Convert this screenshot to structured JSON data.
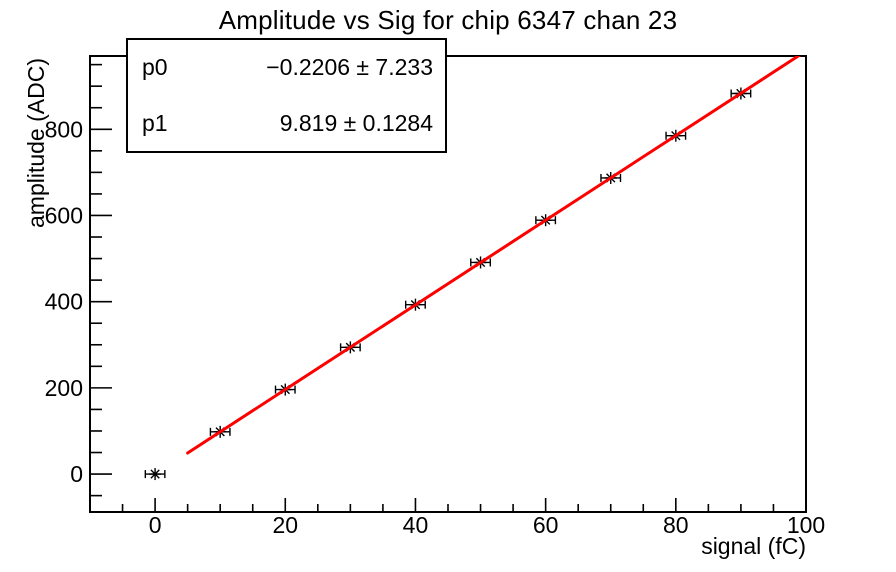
{
  "title": "Amplitude vs Sig for chip 6347 chan 23",
  "stats_box": {
    "rows": [
      {
        "name": "p0",
        "value": "−0.2206 ± 7.233"
      },
      {
        "name": "p1",
        "value": "9.819 ± 0.1284"
      }
    ]
  },
  "colors": {
    "background": "#ffffff",
    "axis": "#000000",
    "text": "#000000",
    "marker": "#000000",
    "fit_line": "#ff0000",
    "stats_border": "#000000"
  },
  "chart_data": {
    "type": "scatter",
    "title": "Amplitude vs Sig for chip 6347 chan 23",
    "xlabel": "signal (fC)",
    "ylabel": "amplitude (ADC)",
    "xlim": [
      -10,
      100
    ],
    "ylim": [
      -88,
      970
    ],
    "x_major_ticks": [
      0,
      20,
      40,
      60,
      80,
      100
    ],
    "x_minor_step": 5,
    "y_major_ticks": [
      0,
      200,
      400,
      600,
      800
    ],
    "y_minor_step": 50,
    "grid": false,
    "legend": "none",
    "series": [
      {
        "name": "data points",
        "type": "scatter",
        "marker": "asterisk",
        "color": "#000000",
        "x": [
          0,
          10,
          20,
          30,
          40,
          50,
          60,
          70,
          80,
          90
        ],
        "y": [
          0,
          98,
          196,
          294,
          393,
          491,
          589,
          687,
          785,
          883
        ],
        "x_err": 1.5
      },
      {
        "name": "linear fit",
        "type": "line",
        "color": "#ff0000",
        "p0": -0.2206,
        "p1": 9.819,
        "x_range": [
          5,
          100
        ]
      }
    ],
    "fit_result": {
      "p0": -0.2206,
      "p0_err": 7.233,
      "p1": 9.819,
      "p1_err": 0.1284
    }
  }
}
